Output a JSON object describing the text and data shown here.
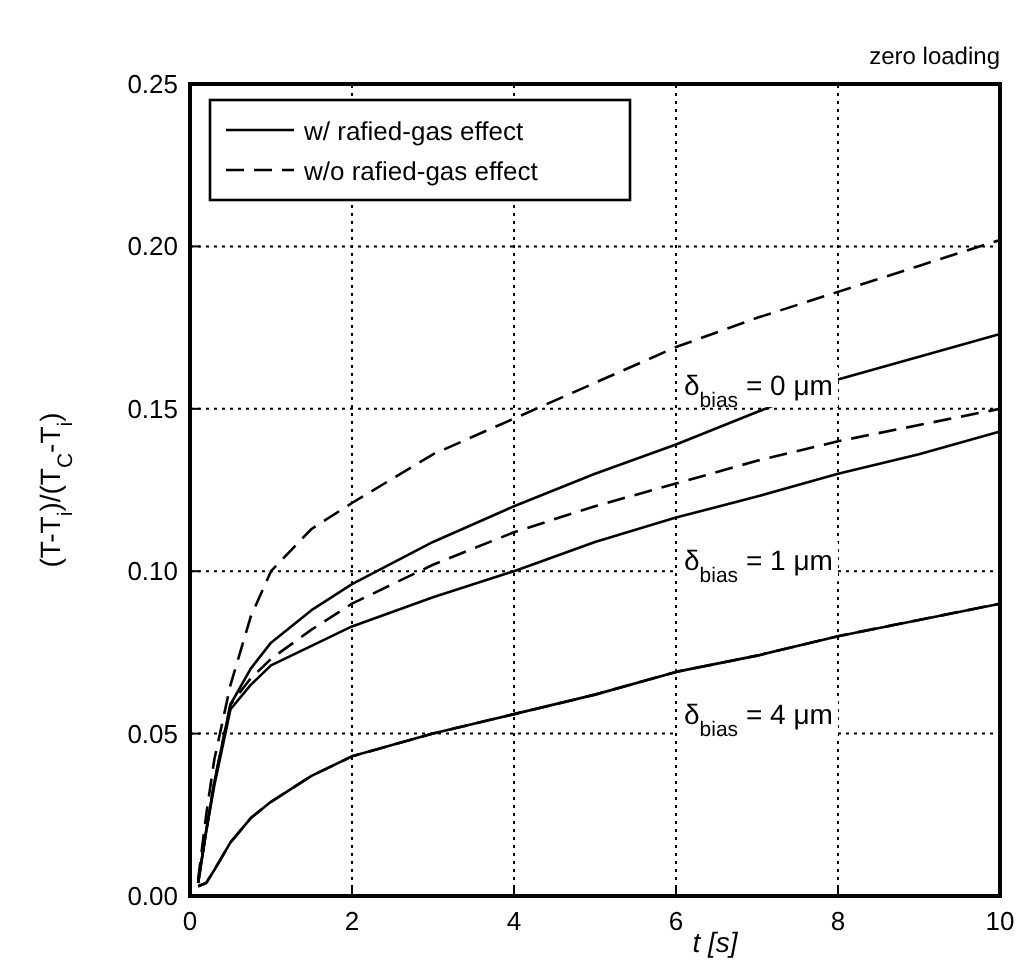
{
  "chart_data": {
    "type": "line",
    "title": "zero loading",
    "xlabel": "t [s]",
    "ylabel": "(T-T$_{i}$)/(T$_{C}$-T$_{i}$)",
    "x": [
      0.1,
      0.2,
      0.3,
      0.5,
      0.75,
      1,
      1.5,
      2,
      3,
      4,
      5,
      6,
      7,
      8,
      9,
      10
    ],
    "series": [
      {
        "name": "w/ rafied-gas effect",
        "color": "#000000",
        "line_style": "solid",
        "values": [
          0.004,
          0.02,
          0.035,
          0.059,
          0.07,
          0.078,
          0.088,
          0.096,
          0.109,
          0.12,
          0.13,
          0.139,
          0.149,
          0.159,
          0.166,
          0.173
        ]
      },
      {
        "name": "w/o rafied-gas effect",
        "color": "#000000",
        "line_style": "dashed",
        "values": [
          0.005,
          0.025,
          0.042,
          0.065,
          0.086,
          0.1,
          0.113,
          0.121,
          0.136,
          0.147,
          0.158,
          0.169,
          0.178,
          0.186,
          0.194,
          0.202
        ]
      },
      {
        "color": "#000000",
        "line_style": "solid",
        "values": [
          0.004,
          0.02,
          0.034,
          0.0575,
          0.065,
          0.071,
          0.077,
          0.083,
          0.092,
          0.1,
          0.109,
          0.1165,
          0.123,
          0.13,
          0.136,
          0.143
        ]
      },
      {
        "color": "#000000",
        "line_style": "dashed",
        "values": [
          0.004,
          0.02,
          0.035,
          0.059,
          0.067,
          0.073,
          0.082,
          0.09,
          0.102,
          0.112,
          0.12,
          0.127,
          0.134,
          0.14,
          0.145,
          0.15
        ]
      },
      {
        "color": "#000000",
        "line_style": "solid",
        "values": [
          0.003,
          0.004,
          0.008,
          0.0165,
          0.024,
          0.029,
          0.037,
          0.043,
          0.05,
          0.056,
          0.062,
          0.069,
          0.074,
          0.08,
          0.085,
          0.09
        ]
      },
      {
        "color": "#000000",
        "line_style": "dashed",
        "values": [
          0.003,
          0.004,
          0.008,
          0.0165,
          0.024,
          0.029,
          0.037,
          0.043,
          0.05,
          0.056,
          0.062,
          0.069,
          0.074,
          0.08,
          0.085,
          0.09
        ]
      }
    ],
    "annotations": [
      "δ$_{bias}$ = 0 μm",
      "δ$_{bias}$ = 1 μm",
      "δ$_{bias}$ = 4 μm"
    ],
    "xlim": [
      0,
      10
    ],
    "ylim": [
      0,
      0.25
    ],
    "xticks": [
      0,
      2,
      4,
      6,
      8,
      10
    ],
    "yticks": [
      {
        "value": 0,
        "label": "0.00"
      },
      {
        "value": 0.05,
        "label": "0.05"
      },
      {
        "value": 0.1,
        "label": "0.10"
      },
      {
        "value": 0.15,
        "label": "0.15"
      },
      {
        "value": 0.2,
        "label": "0.20"
      },
      {
        "value": 0.25,
        "label": "0.25"
      }
    ],
    "grid": true,
    "legend": "top left",
    "marker": "none"
  }
}
